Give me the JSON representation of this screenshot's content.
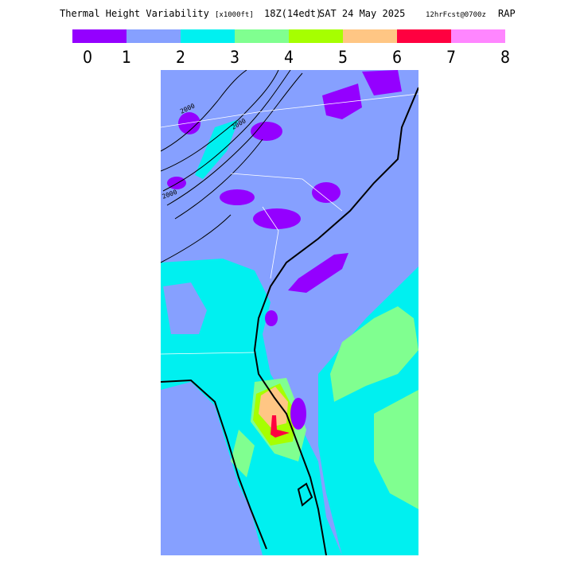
{
  "header": {
    "title": "Thermal Height Variability",
    "units": "[x1000ft]",
    "valid": "18Z(14edt)",
    "date": "SAT 24 May 2025",
    "forecast": "12hrFcst@0700z",
    "model": "RAP"
  },
  "legend": {
    "colors": [
      "#9400ff",
      "#86a0ff",
      "#00f0f0",
      "#80ff90",
      "#a6ff00",
      "#ffc684",
      "#ff0040",
      "#ff86ff"
    ],
    "labels": [
      0,
      1,
      2,
      3,
      4,
      5,
      6,
      7,
      8
    ]
  },
  "map": {
    "contour_labels": [
      "2000",
      "2000",
      "2000"
    ]
  }
}
